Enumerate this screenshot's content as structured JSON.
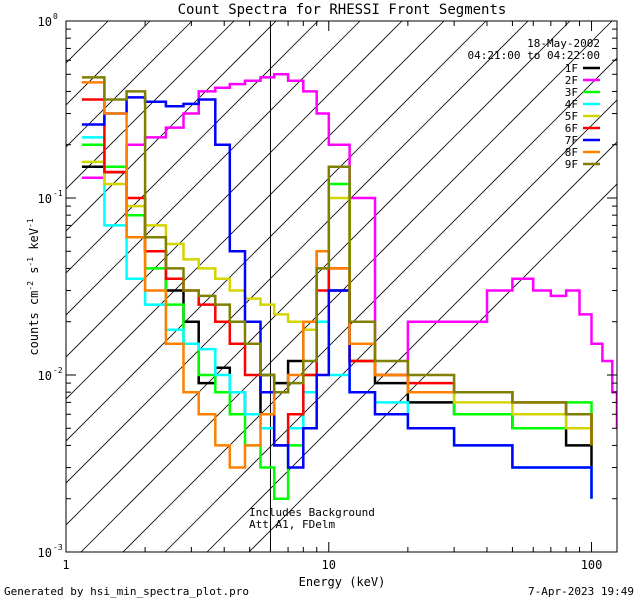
{
  "chart_data": {
    "type": "line",
    "title": "Count Spectra for RHESSI Front Segments",
    "xlabel": "Energy (keV)",
    "ylabel_parts": [
      "counts cm",
      "-2",
      " s",
      "-1",
      " keV",
      "-1"
    ],
    "xscale": "log",
    "yscale": "log",
    "xlim": [
      1.0,
      125.0
    ],
    "ylim": [
      0.001,
      1.0
    ],
    "x_ticks": [
      {
        "v": 10,
        "label": "10"
      },
      {
        "v": 100,
        "label": "100"
      }
    ],
    "x_tick_extra_label": {
      "v": 1,
      "label": "1"
    },
    "y_ticks": [
      {
        "v": 0.001,
        "label": "10",
        "exp": "-3"
      },
      {
        "v": 0.01,
        "label": "10",
        "exp": "-2"
      },
      {
        "v": 0.1,
        "label": "10",
        "exp": "-1"
      },
      {
        "v": 1,
        "label": "10",
        "exp": "0"
      }
    ],
    "date": "18-May-2002",
    "time_range": "04:21:00 to 04:22:00",
    "annotations": [
      "Includes Background",
      "Att A1, FDelm"
    ],
    "footer_left": "Generated by hsi_min_spectra_plot.pro",
    "footer_right": "7-Apr-2023 19:49",
    "attenuator_edge_keV": 6.0,
    "series": [
      {
        "name": "1F",
        "color": "#000000",
        "x": [
          1.15,
          1.4,
          1.7,
          2.0,
          2.4,
          2.8,
          3.2,
          3.7,
          4.2,
          4.8,
          5.5,
          6.2,
          7,
          8,
          9,
          10,
          12,
          15,
          20,
          30,
          50,
          80,
          100
        ],
        "y": [
          0.15,
          0.14,
          0.08,
          0.05,
          0.03,
          0.02,
          0.009,
          0.011,
          0.008,
          0.006,
          0.01,
          0.009,
          0.012,
          0.02,
          0.05,
          0.03,
          0.012,
          0.009,
          0.007,
          0.006,
          0.005,
          0.004,
          0.003
        ]
      },
      {
        "name": "2F",
        "color": "#ff00ff",
        "x": [
          1.15,
          1.4,
          1.7,
          2.0,
          2.4,
          2.8,
          3.2,
          3.7,
          4.2,
          4.8,
          5.5,
          6.2,
          7,
          8,
          9,
          10,
          12,
          15,
          20,
          30,
          40,
          50,
          60,
          70,
          80,
          90,
          100,
          110,
          120,
          125
        ],
        "y": [
          0.13,
          0.15,
          0.2,
          0.22,
          0.25,
          0.3,
          0.4,
          0.42,
          0.44,
          0.46,
          0.48,
          0.5,
          0.46,
          0.4,
          0.3,
          0.2,
          0.1,
          0.01,
          0.02,
          0.02,
          0.03,
          0.035,
          0.03,
          0.028,
          0.03,
          0.022,
          0.015,
          0.012,
          0.008,
          0.005
        ]
      },
      {
        "name": "3F",
        "color": "#00ff00",
        "x": [
          1.15,
          1.4,
          1.7,
          2.0,
          2.4,
          2.8,
          3.2,
          3.7,
          4.2,
          4.8,
          5.5,
          6.2,
          7,
          8,
          9,
          10,
          12,
          15,
          20,
          30,
          50,
          80,
          100
        ],
        "y": [
          0.2,
          0.15,
          0.08,
          0.04,
          0.025,
          0.015,
          0.01,
          0.008,
          0.006,
          0.004,
          0.003,
          0.002,
          0.004,
          0.01,
          0.05,
          0.12,
          0.015,
          0.01,
          0.008,
          0.006,
          0.005,
          0.007,
          0.004
        ]
      },
      {
        "name": "4F",
        "color": "#00ffff",
        "x": [
          1.15,
          1.4,
          1.7,
          2.0,
          2.4,
          2.8,
          3.2,
          3.7,
          4.2,
          4.8,
          5.5,
          6.2,
          7,
          8,
          9,
          10,
          12,
          15,
          20,
          30,
          50,
          80,
          100
        ],
        "y": [
          0.22,
          0.07,
          0.035,
          0.025,
          0.018,
          0.015,
          0.014,
          0.01,
          0.008,
          0.006,
          0.005,
          0.004,
          0.005,
          0.008,
          0.02,
          0.01,
          0.008,
          0.007,
          0.005,
          0.004,
          0.003,
          0.003,
          0.002
        ]
      },
      {
        "name": "5F",
        "color": "#d4d400",
        "x": [
          1.15,
          1.4,
          1.7,
          2.0,
          2.4,
          2.8,
          3.2,
          3.7,
          4.2,
          4.8,
          5.5,
          6.2,
          7,
          8,
          9,
          10,
          12,
          15,
          20,
          30,
          50,
          80,
          100
        ],
        "y": [
          0.16,
          0.12,
          0.09,
          0.07,
          0.055,
          0.045,
          0.04,
          0.035,
          0.03,
          0.027,
          0.025,
          0.022,
          0.02,
          0.018,
          0.04,
          0.1,
          0.012,
          0.01,
          0.008,
          0.007,
          0.006,
          0.005,
          0.004
        ]
      },
      {
        "name": "6F",
        "color": "#ff0000",
        "x": [
          1.15,
          1.4,
          1.7,
          2.0,
          2.4,
          2.8,
          3.2,
          3.7,
          4.2,
          4.8,
          5.5,
          6.2,
          7,
          8,
          9,
          10,
          12,
          15,
          20,
          30,
          50,
          80,
          100
        ],
        "y": [
          0.36,
          0.14,
          0.1,
          0.05,
          0.035,
          0.03,
          0.025,
          0.02,
          0.015,
          0.01,
          0.008,
          0.004,
          0.006,
          0.01,
          0.03,
          0.04,
          0.012,
          0.01,
          0.009,
          0.008,
          0.007,
          0.006,
          0.004
        ]
      },
      {
        "name": "7F",
        "color": "#0000ff",
        "x": [
          1.15,
          1.4,
          1.7,
          2.0,
          2.4,
          2.8,
          3.2,
          3.7,
          4.2,
          4.8,
          5.5,
          6.2,
          7,
          8,
          9,
          10,
          12,
          15,
          20,
          30,
          50,
          80,
          100
        ],
        "y": [
          0.26,
          0.3,
          0.37,
          0.35,
          0.33,
          0.34,
          0.36,
          0.2,
          0.05,
          0.02,
          0.008,
          0.004,
          0.003,
          0.005,
          0.01,
          0.03,
          0.008,
          0.006,
          0.005,
          0.004,
          0.003,
          0.003,
          0.002
        ]
      },
      {
        "name": "8F",
        "color": "#ff8000",
        "x": [
          1.15,
          1.4,
          1.7,
          2.0,
          2.4,
          2.8,
          3.2,
          3.7,
          4.2,
          4.8,
          5.5,
          6.2,
          7,
          8,
          9,
          10,
          12,
          15,
          20,
          30,
          50,
          80,
          100
        ],
        "y": [
          0.45,
          0.3,
          0.06,
          0.03,
          0.015,
          0.008,
          0.006,
          0.004,
          0.003,
          0.004,
          0.006,
          0.008,
          0.01,
          0.02,
          0.05,
          0.04,
          0.015,
          0.01,
          0.008,
          0.008,
          0.007,
          0.006,
          0.004
        ]
      },
      {
        "name": "9F",
        "color": "#808000",
        "x": [
          1.15,
          1.4,
          1.7,
          2.0,
          2.4,
          2.8,
          3.2,
          3.7,
          4.2,
          4.8,
          5.5,
          6.2,
          7,
          8,
          9,
          10,
          12,
          15,
          20,
          30,
          50,
          80,
          100
        ],
        "y": [
          0.48,
          0.36,
          0.4,
          0.06,
          0.04,
          0.03,
          0.028,
          0.025,
          0.02,
          0.015,
          0.01,
          0.008,
          0.009,
          0.012,
          0.04,
          0.15,
          0.02,
          0.012,
          0.01,
          0.008,
          0.007,
          0.006,
          0.004
        ]
      }
    ]
  }
}
